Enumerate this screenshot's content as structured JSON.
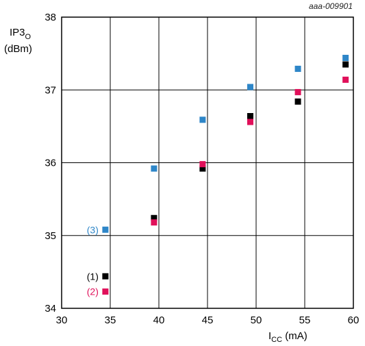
{
  "chart_data": {
    "type": "scatter",
    "figure_id": "aaa-009901",
    "ylabel": {
      "main": "IP3",
      "sub": "O",
      "unit": "(dBm)"
    },
    "xlabel": {
      "main": "I",
      "sub": "CC",
      "unit": " (mA)"
    },
    "xlim": [
      30,
      60
    ],
    "ylim": [
      34,
      38
    ],
    "xticks": [
      30,
      35,
      40,
      45,
      50,
      55,
      60
    ],
    "yticks": [
      34,
      35,
      36,
      37,
      38
    ],
    "grid": true,
    "series": [
      {
        "name": "(1)",
        "color": "#000000",
        "points": [
          {
            "x": 34.5,
            "y": 34.44
          },
          {
            "x": 39.5,
            "y": 35.24
          },
          {
            "x": 44.5,
            "y": 35.92
          },
          {
            "x": 49.4,
            "y": 36.64
          },
          {
            "x": 54.3,
            "y": 36.84
          },
          {
            "x": 59.2,
            "y": 37.35
          }
        ]
      },
      {
        "name": "(2)",
        "color": "#e0105a",
        "points": [
          {
            "x": 34.5,
            "y": 34.23
          },
          {
            "x": 39.5,
            "y": 35.18
          },
          {
            "x": 44.5,
            "y": 35.98
          },
          {
            "x": 49.4,
            "y": 36.56
          },
          {
            "x": 54.3,
            "y": 36.97
          },
          {
            "x": 59.2,
            "y": 37.14
          }
        ]
      },
      {
        "name": "(3)",
        "color": "#2e86c8",
        "points": [
          {
            "x": 34.5,
            "y": 35.08
          },
          {
            "x": 39.5,
            "y": 35.92
          },
          {
            "x": 44.5,
            "y": 36.59
          },
          {
            "x": 49.4,
            "y": 37.04
          },
          {
            "x": 54.3,
            "y": 37.29
          },
          {
            "x": 59.2,
            "y": 37.44
          }
        ]
      }
    ]
  }
}
